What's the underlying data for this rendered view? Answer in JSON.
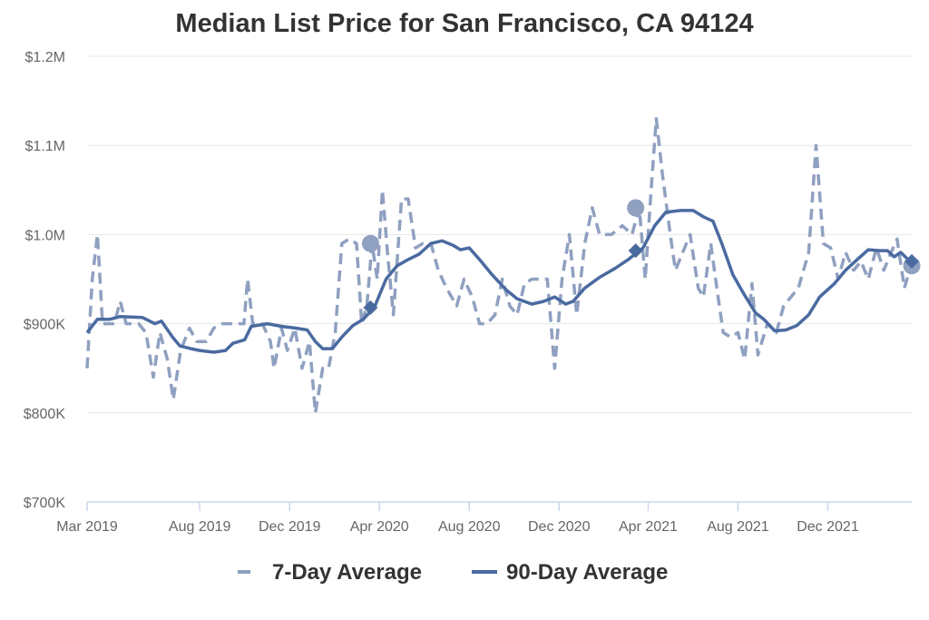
{
  "chart_data": {
    "type": "line",
    "title": "Median List Price for San Francisco, CA 94124",
    "xlabel": "",
    "ylabel": "",
    "ylim": [
      700000,
      1200000
    ],
    "y_ticks": [
      {
        "value": 700000,
        "label": "$700K"
      },
      {
        "value": 800000,
        "label": "$800K"
      },
      {
        "value": 900000,
        "label": "$900K"
      },
      {
        "value": 1000000,
        "label": "$1.0M"
      },
      {
        "value": 1100000,
        "label": "$1.1M"
      },
      {
        "value": 1200000,
        "label": "$1.2M"
      }
    ],
    "x_range": [
      "2019-03-01",
      "2022-03-25"
    ],
    "x_ticks": [
      {
        "date": "2019-03-01",
        "label": "Mar 2019"
      },
      {
        "date": "2019-08-01",
        "label": "Aug 2019"
      },
      {
        "date": "2019-12-01",
        "label": "Dec 2019"
      },
      {
        "date": "2020-04-01",
        "label": "Apr 2020"
      },
      {
        "date": "2020-08-01",
        "label": "Aug 2020"
      },
      {
        "date": "2020-12-01",
        "label": "Dec 2020"
      },
      {
        "date": "2021-04-01",
        "label": "Apr 2021"
      },
      {
        "date": "2021-08-01",
        "label": "Aug 2021"
      },
      {
        "date": "2021-12-01",
        "label": "Dec 2021"
      }
    ],
    "legend_position": "bottom",
    "grid": true,
    "series": [
      {
        "name": "7-Day Average",
        "style": "dashed",
        "color": "#8fa0c0",
        "data": [
          [
            "2019-03-01",
            850000
          ],
          [
            "2019-03-08",
            950000
          ],
          [
            "2019-03-15",
            1000000
          ],
          [
            "2019-03-22",
            900000
          ],
          [
            "2019-03-29",
            900000
          ],
          [
            "2019-04-07",
            900000
          ],
          [
            "2019-04-15",
            925000
          ],
          [
            "2019-04-23",
            900000
          ],
          [
            "2019-05-01",
            900000
          ],
          [
            "2019-05-10",
            900000
          ],
          [
            "2019-05-20",
            890000
          ],
          [
            "2019-05-30",
            840000
          ],
          [
            "2019-06-08",
            890000
          ],
          [
            "2019-06-18",
            860000
          ],
          [
            "2019-06-26",
            815000
          ],
          [
            "2019-07-06",
            870000
          ],
          [
            "2019-07-18",
            895000
          ],
          [
            "2019-07-28",
            880000
          ],
          [
            "2019-08-10",
            880000
          ],
          [
            "2019-08-20",
            895000
          ],
          [
            "2019-09-01",
            900000
          ],
          [
            "2019-09-15",
            900000
          ],
          [
            "2019-09-30",
            900000
          ],
          [
            "2019-10-05",
            950000
          ],
          [
            "2019-10-12",
            900000
          ],
          [
            "2019-10-25",
            900000
          ],
          [
            "2019-11-05",
            880000
          ],
          [
            "2019-11-10",
            850000
          ],
          [
            "2019-11-20",
            895000
          ],
          [
            "2019-11-28",
            870000
          ],
          [
            "2019-12-08",
            895000
          ],
          [
            "2019-12-18",
            850000
          ],
          [
            "2019-12-28",
            880000
          ],
          [
            "2020-01-05",
            800000
          ],
          [
            "2020-01-15",
            850000
          ],
          [
            "2020-01-23",
            850000
          ],
          [
            "2020-02-01",
            890000
          ],
          [
            "2020-02-10",
            990000
          ],
          [
            "2020-02-20",
            995000
          ],
          [
            "2020-03-01",
            990000
          ],
          [
            "2020-03-08",
            900000
          ],
          [
            "2020-03-15",
            920000
          ],
          [
            "2020-03-22",
            990000
          ],
          [
            "2020-03-29",
            950000
          ],
          [
            "2020-04-05",
            1050000
          ],
          [
            "2020-04-12",
            980000
          ],
          [
            "2020-04-20",
            910000
          ],
          [
            "2020-05-01",
            1040000
          ],
          [
            "2020-05-10",
            1040000
          ],
          [
            "2020-05-20",
            985000
          ],
          [
            "2020-05-30",
            990000
          ],
          [
            "2020-06-10",
            990000
          ],
          [
            "2020-06-20",
            960000
          ],
          [
            "2020-07-01",
            940000
          ],
          [
            "2020-07-15",
            920000
          ],
          [
            "2020-07-25",
            950000
          ],
          [
            "2020-08-05",
            930000
          ],
          [
            "2020-08-15",
            900000
          ],
          [
            "2020-08-25",
            900000
          ],
          [
            "2020-09-05",
            910000
          ],
          [
            "2020-09-15",
            950000
          ],
          [
            "2020-09-25",
            920000
          ],
          [
            "2020-10-05",
            910000
          ],
          [
            "2020-10-15",
            945000
          ],
          [
            "2020-10-25",
            950000
          ],
          [
            "2020-11-05",
            950000
          ],
          [
            "2020-11-15",
            950000
          ],
          [
            "2020-11-25",
            850000
          ],
          [
            "2020-12-05",
            950000
          ],
          [
            "2020-12-15",
            1000000
          ],
          [
            "2020-12-25",
            910000
          ],
          [
            "2021-01-05",
            990000
          ],
          [
            "2021-01-15",
            1030000
          ],
          [
            "2021-01-25",
            1000000
          ],
          [
            "2021-02-10",
            1000000
          ],
          [
            "2021-02-25",
            1010000
          ],
          [
            "2021-03-10",
            1000000
          ],
          [
            "2021-03-20",
            1030000
          ],
          [
            "2021-03-28",
            950000
          ],
          [
            "2021-04-05",
            1050000
          ],
          [
            "2021-04-12",
            1130000
          ],
          [
            "2021-04-20",
            1070000
          ],
          [
            "2021-05-01",
            1000000
          ],
          [
            "2021-05-08",
            960000
          ],
          [
            "2021-05-18",
            980000
          ],
          [
            "2021-05-28",
            1000000
          ],
          [
            "2021-06-08",
            940000
          ],
          [
            "2021-06-15",
            930000
          ],
          [
            "2021-06-25",
            990000
          ],
          [
            "2021-07-05",
            930000
          ],
          [
            "2021-07-12",
            890000
          ],
          [
            "2021-07-22",
            885000
          ],
          [
            "2021-08-01",
            890000
          ],
          [
            "2021-08-10",
            860000
          ],
          [
            "2021-08-20",
            945000
          ],
          [
            "2021-08-28",
            865000
          ],
          [
            "2021-09-10",
            900000
          ],
          [
            "2021-09-22",
            890000
          ],
          [
            "2021-10-02",
            920000
          ],
          [
            "2021-10-12",
            930000
          ],
          [
            "2021-10-22",
            940000
          ],
          [
            "2021-11-05",
            980000
          ],
          [
            "2021-11-15",
            1100000
          ],
          [
            "2021-11-25",
            990000
          ],
          [
            "2021-12-05",
            985000
          ],
          [
            "2021-12-15",
            950000
          ],
          [
            "2021-12-25",
            980000
          ],
          [
            "2022-01-05",
            960000
          ],
          [
            "2022-01-15",
            970000
          ],
          [
            "2022-01-25",
            950000
          ],
          [
            "2022-02-05",
            985000
          ],
          [
            "2022-02-15",
            960000
          ],
          [
            "2022-02-25",
            980000
          ],
          [
            "2022-03-05",
            995000
          ],
          [
            "2022-03-15",
            940000
          ],
          [
            "2022-03-22",
            960000
          ]
        ]
      },
      {
        "name": "90-Day Average",
        "style": "solid",
        "color": "#4a6aa0",
        "data": [
          [
            "2019-03-01",
            890000
          ],
          [
            "2019-03-15",
            905000
          ],
          [
            "2019-04-01",
            905000
          ],
          [
            "2019-04-15",
            908000
          ],
          [
            "2019-05-15",
            907000
          ],
          [
            "2019-06-01",
            900000
          ],
          [
            "2019-06-10",
            903000
          ],
          [
            "2019-06-25",
            885000
          ],
          [
            "2019-07-05",
            875000
          ],
          [
            "2019-07-20",
            872000
          ],
          [
            "2019-08-01",
            870000
          ],
          [
            "2019-08-20",
            868000
          ],
          [
            "2019-09-05",
            870000
          ],
          [
            "2019-09-15",
            878000
          ],
          [
            "2019-10-01",
            882000
          ],
          [
            "2019-10-10",
            897000
          ],
          [
            "2019-11-01",
            900000
          ],
          [
            "2019-11-20",
            897000
          ],
          [
            "2019-12-10",
            895000
          ],
          [
            "2019-12-25",
            893000
          ],
          [
            "2020-01-05",
            880000
          ],
          [
            "2020-01-15",
            872000
          ],
          [
            "2020-01-28",
            872000
          ],
          [
            "2020-02-10",
            885000
          ],
          [
            "2020-02-25",
            898000
          ],
          [
            "2020-03-10",
            905000
          ],
          [
            "2020-03-25",
            918000
          ],
          [
            "2020-04-10",
            950000
          ],
          [
            "2020-04-25",
            965000
          ],
          [
            "2020-05-10",
            972000
          ],
          [
            "2020-05-25",
            978000
          ],
          [
            "2020-06-10",
            990000
          ],
          [
            "2020-06-25",
            993000
          ],
          [
            "2020-07-10",
            988000
          ],
          [
            "2020-07-20",
            983000
          ],
          [
            "2020-08-01",
            985000
          ],
          [
            "2020-08-15",
            972000
          ],
          [
            "2020-09-01",
            955000
          ],
          [
            "2020-09-20",
            938000
          ],
          [
            "2020-10-05",
            928000
          ],
          [
            "2020-10-25",
            922000
          ],
          [
            "2020-11-10",
            925000
          ],
          [
            "2020-11-25",
            930000
          ],
          [
            "2020-12-10",
            922000
          ],
          [
            "2020-12-20",
            925000
          ],
          [
            "2021-01-05",
            940000
          ],
          [
            "2021-01-25",
            952000
          ],
          [
            "2021-02-15",
            962000
          ],
          [
            "2021-03-05",
            972000
          ],
          [
            "2021-03-25",
            985000
          ],
          [
            "2021-04-10",
            1010000
          ],
          [
            "2021-04-25",
            1025000
          ],
          [
            "2021-05-15",
            1027000
          ],
          [
            "2021-06-01",
            1027000
          ],
          [
            "2021-06-15",
            1020000
          ],
          [
            "2021-06-28",
            1015000
          ],
          [
            "2021-07-10",
            990000
          ],
          [
            "2021-07-25",
            955000
          ],
          [
            "2021-08-10",
            932000
          ],
          [
            "2021-08-25",
            912000
          ],
          [
            "2021-09-05",
            905000
          ],
          [
            "2021-09-20",
            892000
          ],
          [
            "2021-10-05",
            893000
          ],
          [
            "2021-10-20",
            898000
          ],
          [
            "2021-11-05",
            910000
          ],
          [
            "2021-11-20",
            930000
          ],
          [
            "2021-12-10",
            945000
          ],
          [
            "2021-12-25",
            960000
          ],
          [
            "2022-01-10",
            972000
          ],
          [
            "2022-01-25",
            983000
          ],
          [
            "2022-02-10",
            982000
          ],
          [
            "2022-02-20",
            982000
          ],
          [
            "2022-03-01",
            975000
          ],
          [
            "2022-03-10",
            980000
          ],
          [
            "2022-03-25",
            968000
          ]
        ]
      }
    ],
    "markers": [
      {
        "series": "7-Day Average",
        "shape": "circle",
        "date": "2020-03-20",
        "value": 990000
      },
      {
        "series": "7-Day Average",
        "shape": "circle",
        "date": "2021-03-15",
        "value": 1030000
      },
      {
        "series": "7-Day Average",
        "shape": "circle",
        "date": "2022-03-25",
        "value": 965000
      },
      {
        "series": "90-Day Average",
        "shape": "diamond",
        "date": "2020-03-20",
        "value": 918000
      },
      {
        "series": "90-Day Average",
        "shape": "diamond",
        "date": "2021-03-15",
        "value": 982000
      },
      {
        "series": "90-Day Average",
        "shape": "diamond",
        "date": "2022-03-25",
        "value": 970000
      }
    ]
  }
}
